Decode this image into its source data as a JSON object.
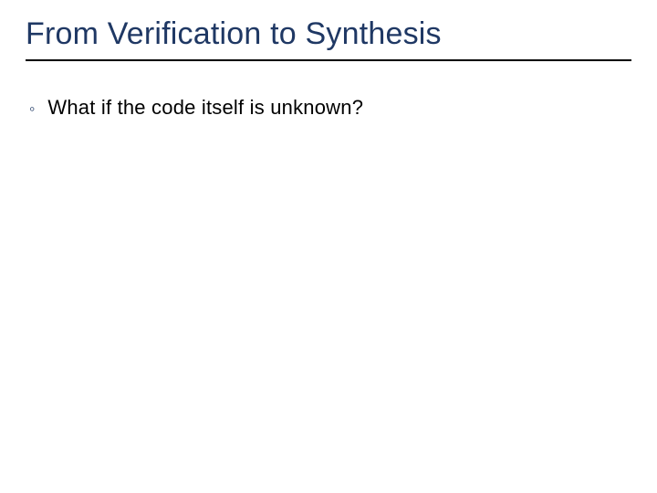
{
  "slide": {
    "title": "From Verification to Synthesis",
    "title_color": "#1f3864",
    "title_fontsize": 34,
    "divider_color": "#000000",
    "bullet": {
      "marker": "◦",
      "marker_color": "#1f3864",
      "text": "What if the code itself is unknown?",
      "text_color": "#000000",
      "text_fontsize": 22
    },
    "background_color": "#ffffff"
  }
}
